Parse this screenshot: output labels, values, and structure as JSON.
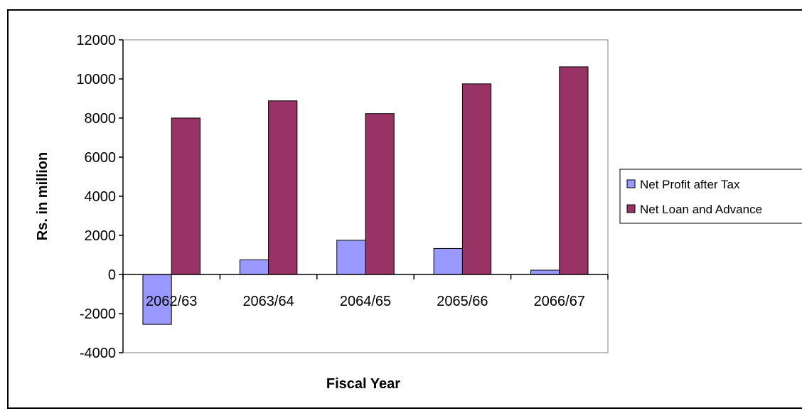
{
  "chart_data": {
    "type": "bar",
    "title": "",
    "xlabel": "Fiscal Year",
    "ylabel": "Rs. in million",
    "categories": [
      "2062/63",
      "2063/64",
      "2064/65",
      "2065/66",
      "2066/67"
    ],
    "series": [
      {
        "name": "Net Profit after Tax",
        "values": [
          -2550,
          750,
          1750,
          1330,
          220
        ],
        "color": "#9999ff"
      },
      {
        "name": "Net Loan and Advance",
        "values": [
          8000,
          8880,
          8230,
          9750,
          10620
        ],
        "color": "#993366"
      }
    ],
    "ylim": [
      -4000,
      12000
    ],
    "yticks": [
      -4000,
      -2000,
      0,
      2000,
      4000,
      6000,
      8000,
      10000,
      12000
    ],
    "grid": false,
    "legend_position": "right"
  }
}
